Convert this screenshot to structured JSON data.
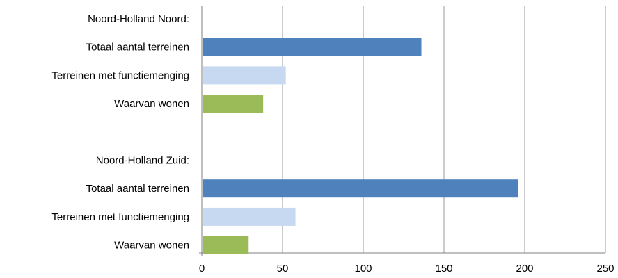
{
  "chart_data": {
    "type": "bar",
    "orientation": "horizontal",
    "categories": [
      "Noord-Holland Noord:",
      "Totaal aantal terreinen",
      "Terreinen met functiemenging",
      "Waarvan wonen",
      "",
      "Noord-Holland Zuid:",
      "Totaal aantal terreinen",
      "Terreinen met functiemenging",
      "Waarvan wonen"
    ],
    "values": [
      null,
      136,
      52,
      38,
      null,
      null,
      196,
      58,
      29
    ],
    "bar_colors": [
      null,
      "#4f81bd",
      "#c6d9f1",
      "#9bbb59",
      null,
      null,
      "#4f81bd",
      "#c6d9f1",
      "#9bbb59"
    ],
    "xticks": [
      "0",
      "50",
      "100",
      "150",
      "200",
      "250"
    ],
    "xlim": [
      0,
      250
    ],
    "grid": true,
    "title": "",
    "xlabel": "",
    "ylabel": ""
  }
}
